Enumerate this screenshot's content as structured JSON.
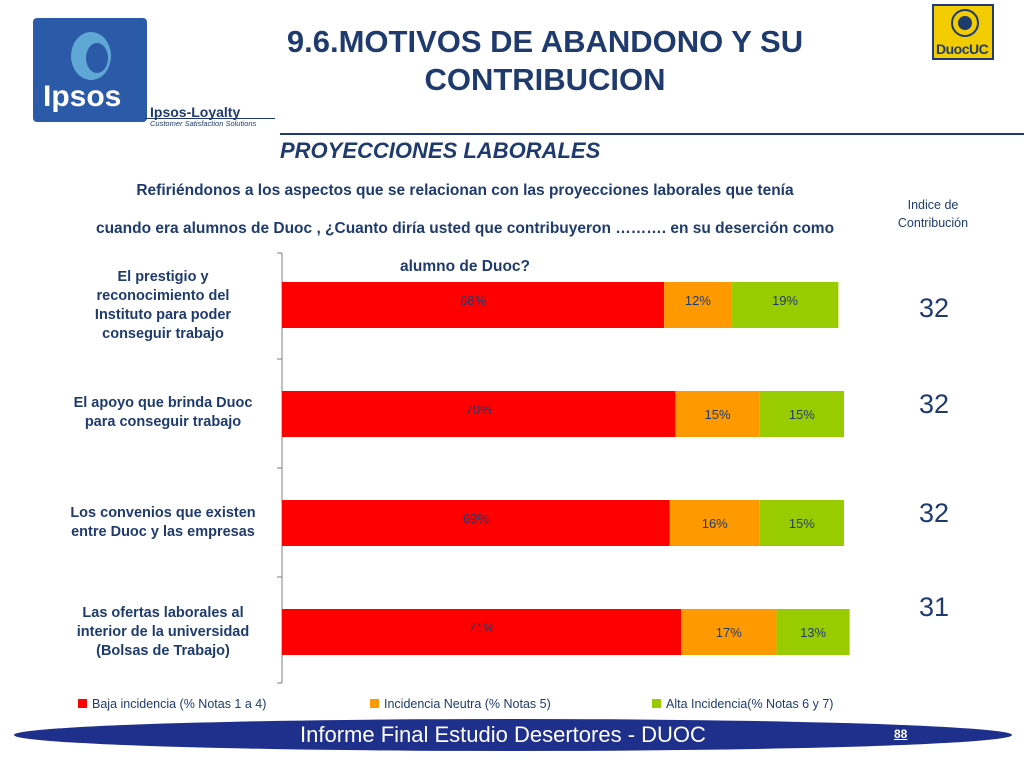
{
  "header": {
    "title_line1": "9.6.MOTIVOS DE ABANDONO Y SU",
    "title_line2": "CONTRIBUCION",
    "left_logo_text": "Ipsos",
    "loyalty_text": "Ipsos-Loyalty",
    "loyalty_subtext": "Customer Satisfaction Solutions",
    "right_logo_text": "DuocUC"
  },
  "subtitle": "PROYECCIONES LABORALES",
  "question": {
    "line1": "Refiriéndonos a los aspectos que se relacionan con las proyecciones laborales que tenía",
    "line2": "cuando era alumnos de Duoc , ¿Cuanto diría usted que contribuyeron ………. en su deserción como",
    "line3": "alumno de Duoc?"
  },
  "index_header": {
    "line1": "Indice de",
    "line2": "Contribución"
  },
  "chart_data": {
    "type": "bar",
    "orientation": "horizontal",
    "stacked": true,
    "categories": [
      "El prestigio y reconocimiento del Instituto para poder conseguir trabajo",
      "El apoyo que brinda Duoc para conseguir trabajo",
      "Los convenios que existen entre Duoc y las empresas",
      "Las ofertas laborales al interior de la universidad (Bolsas de Trabajo)"
    ],
    "category_lines": [
      [
        "El prestigio y",
        "reconocimiento del",
        "Instituto para poder",
        "conseguir trabajo"
      ],
      [
        "El apoyo que brinda Duoc",
        "para conseguir trabajo"
      ],
      [
        "Los convenios que existen",
        "entre Duoc y las empresas"
      ],
      [
        "Las ofertas laborales al",
        "interior de la universidad",
        "(Bolsas de Trabajo)"
      ]
    ],
    "series": [
      {
        "name": "Baja incidencia (% Notas 1 a 4)",
        "color": "#ff0000",
        "values": [
          68,
          70,
          69,
          71
        ]
      },
      {
        "name": "Incidencia Neutra (% Notas 5)",
        "color": "#ff9900",
        "values": [
          12,
          15,
          16,
          17
        ]
      },
      {
        "name": "Alta Incidencia(% Notas 6 y 7)",
        "color": "#99cc00",
        "values": [
          19,
          15,
          15,
          13
        ]
      }
    ],
    "value_suffix": "%",
    "legend_position": "bottom",
    "grid": false,
    "index_values": [
      32,
      32,
      32,
      31
    ]
  },
  "footer": {
    "text": "Informe Final Estudio Desertores - DUOC",
    "page": "88"
  }
}
